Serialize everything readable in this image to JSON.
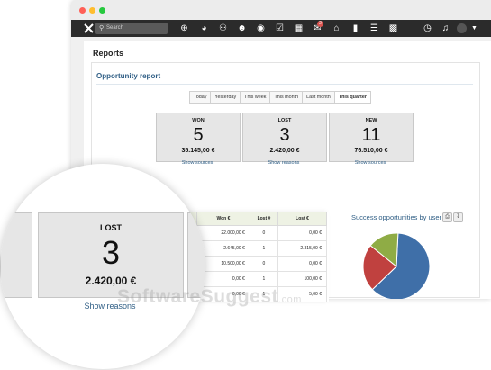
{
  "window": {
    "traffic_lights": [
      "#ff5f56",
      "#ffbd2e",
      "#27c93f"
    ]
  },
  "toolbar": {
    "search_placeholder": "Search",
    "icons": [
      "plus-circle-icon",
      "dashboard-icon",
      "team-icon",
      "user-icon",
      "money-bag-icon",
      "checklist-icon",
      "calendar-icon",
      "chat-icon",
      "basket-icon",
      "folder-icon",
      "list-icon",
      "bar-chart-icon",
      "clock-icon",
      "bell-icon",
      "user-avatar-icon"
    ],
    "chat_badge": "2"
  },
  "page": {
    "title": "Reports",
    "section_title": "Opportunity report"
  },
  "period_tabs": [
    "Today",
    "Yesterday",
    "This week",
    "This month",
    "Last month",
    "This quarter"
  ],
  "active_tab": "This quarter",
  "cards": [
    {
      "label": "WON",
      "count": "5",
      "amount": "35.145,00 €",
      "link": "Show sources"
    },
    {
      "label": "LOST",
      "count": "3",
      "amount": "2.420,00 €",
      "link": "Show reasons"
    },
    {
      "label": "NEW",
      "count": "11",
      "amount": "76.510,00 €",
      "link": "Show sources"
    }
  ],
  "table": {
    "headers": [
      "",
      "Won €",
      "Lost #",
      "Lost €"
    ],
    "rows": [
      [
        "",
        "22.000,00 €",
        "0",
        "0,00 €"
      ],
      [
        "",
        "2.645,00 €",
        "1",
        "2.315,00 €"
      ],
      [
        "",
        "10.500,00 €",
        "0",
        "0,00 €"
      ],
      [
        "",
        "0,00 €",
        "1",
        "100,00 €"
      ],
      [
        "",
        "0,00 €",
        "1",
        "5,00 €"
      ]
    ]
  },
  "chart": {
    "title": "Success opportunities by user"
  },
  "chart_data": {
    "type": "pie",
    "title": "Success opportunities by user",
    "values": [
      62,
      23,
      15
    ],
    "colors": [
      "#3f6fa8",
      "#c0413f",
      "#8fac45"
    ]
  },
  "magnifier": {
    "label": "LOST",
    "count": "3",
    "amount": "2.420,00 €",
    "link": "Show reasons"
  },
  "watermark": {
    "main": "SoftwareSuggest",
    "suffix": ".com"
  }
}
